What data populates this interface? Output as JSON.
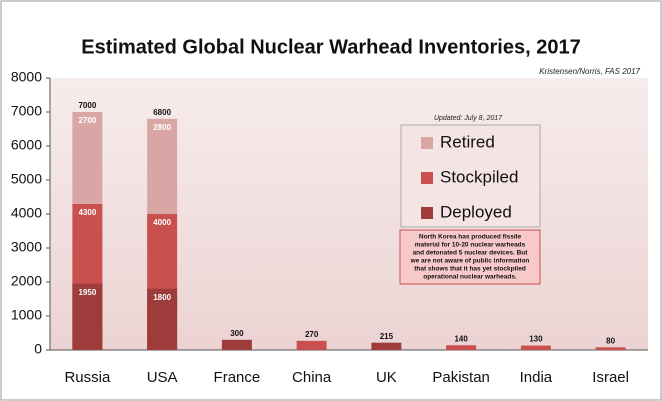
{
  "chart_data": {
    "type": "bar",
    "title": "Estimated Global Nuclear Warhead Inventories, 2017",
    "source": "Kristensen/Norris, FAS 2017",
    "updated": "Updated: July 8, 2017",
    "note": [
      "North Korea has produced fissile",
      "material for 10-20 nuclear warheads",
      "and detonated 5 nuclear devices. But",
      "we are not aware of public information",
      "that shows that it has yet stockpiled",
      "operational nuclear warheads."
    ],
    "categories": [
      "Russia",
      "USA",
      "France",
      "China",
      "UK",
      "Pakistan",
      "India",
      "Israel"
    ],
    "series": [
      {
        "name": "Deployed",
        "color": "#9e3b3b",
        "values": [
          1950,
          1800,
          300,
          null,
          215,
          null,
          null,
          null
        ],
        "value_labels": [
          "1950",
          "1800",
          null,
          null,
          null,
          null,
          null,
          null
        ]
      },
      {
        "name": "Stockpiled",
        "color": "#c9504f",
        "values": [
          4300,
          4000,
          null,
          270,
          null,
          140,
          130,
          80
        ],
        "value_labels": [
          "4300",
          "4000",
          null,
          null,
          null,
          null,
          null,
          null
        ]
      },
      {
        "name": "Retired",
        "color": "#d9a6a6",
        "values": [
          2700,
          2800,
          null,
          null,
          null,
          null,
          null,
          null
        ],
        "value_labels": [
          "2700",
          "2800",
          null,
          null,
          null,
          null,
          null,
          null
        ]
      }
    ],
    "totals": [
      7000,
      6800,
      300,
      270,
      215,
      140,
      130,
      80
    ],
    "ylim": [
      0,
      8000
    ],
    "yticks": [
      0,
      1000,
      2000,
      3000,
      4000,
      5000,
      6000,
      7000,
      8000
    ],
    "grid": false
  }
}
